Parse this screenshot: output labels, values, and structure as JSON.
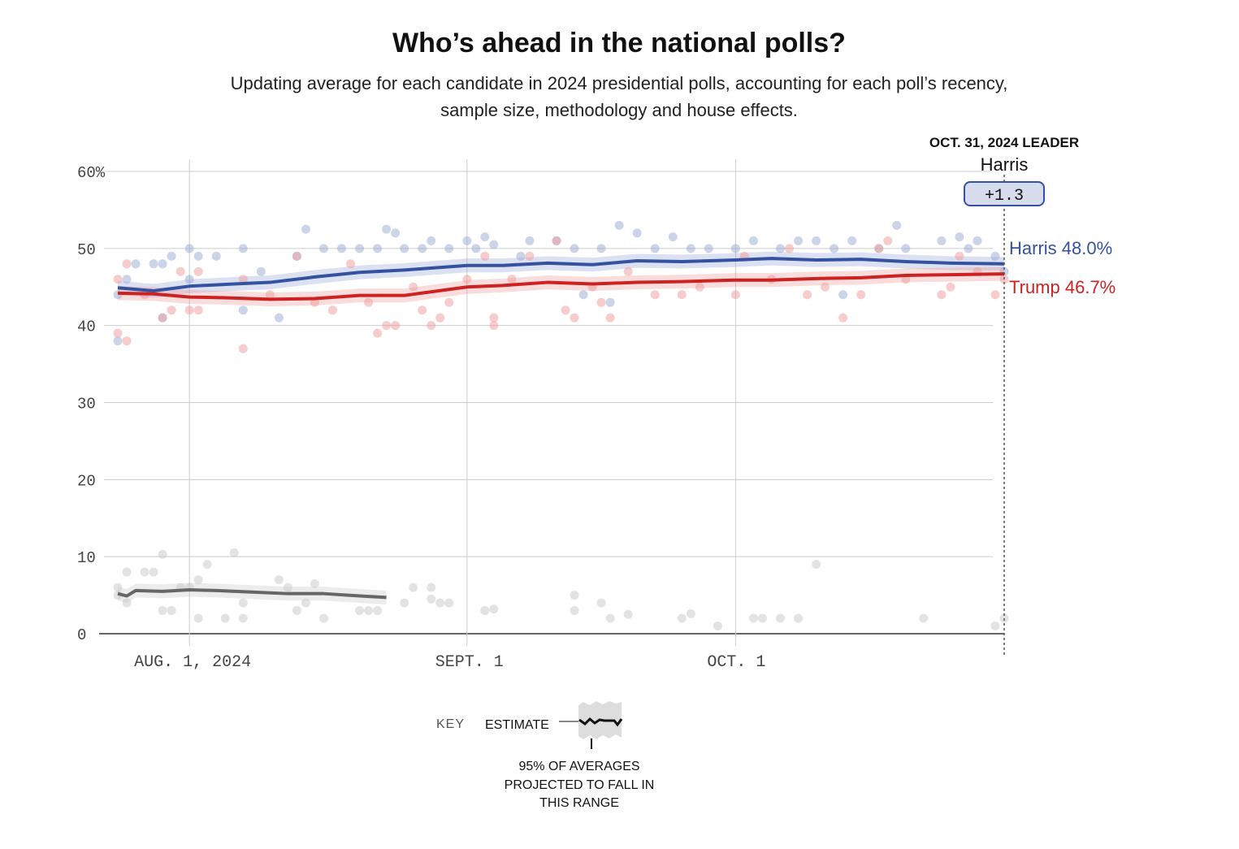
{
  "chart_data": {
    "type": "scatter",
    "title": "Who’s ahead in the national polls?",
    "subtitle": [
      "Updating average for each candidate in 2024 presidential polls, accounting for each poll’s recency,",
      "sample size, methodology and house effects."
    ],
    "y_ticks": [
      "60%",
      "50",
      "40",
      "30",
      "20",
      "10",
      "0"
    ],
    "y_tick_values": [
      60,
      50,
      40,
      30,
      20,
      10,
      0
    ],
    "ylim": [
      0,
      60
    ],
    "xlim": [
      "2024-07-24",
      "2024-10-31"
    ],
    "x_ticks": [
      {
        "date": "2024-08-01",
        "label": "AUG. 1, 2024"
      },
      {
        "date": "2024-09-01",
        "label": "SEPT. 1"
      },
      {
        "date": "2024-10-01",
        "label": "OCT. 1"
      }
    ],
    "grid": true,
    "leader": {
      "heading": "OCT. 31, 2024 LEADER",
      "name": "Harris",
      "margin": "+1.3",
      "date": "2024-10-31"
    },
    "series": [
      {
        "name": "Harris",
        "end_label": "Harris 48.0%",
        "color": "#3552a0",
        "dot_color": "#9aaad6",
        "trend": [
          [
            "2024-07-24",
            44.9
          ],
          [
            "2024-07-28",
            44.5
          ],
          [
            "2024-08-01",
            45.1
          ],
          [
            "2024-08-06",
            45.4
          ],
          [
            "2024-08-10",
            45.6
          ],
          [
            "2024-08-15",
            46.3
          ],
          [
            "2024-08-20",
            46.9
          ],
          [
            "2024-08-25",
            47.2
          ],
          [
            "2024-09-01",
            47.8
          ],
          [
            "2024-09-05",
            47.8
          ],
          [
            "2024-09-10",
            48.1
          ],
          [
            "2024-09-15",
            47.9
          ],
          [
            "2024-09-20",
            48.4
          ],
          [
            "2024-09-25",
            48.3
          ],
          [
            "2024-10-01",
            48.5
          ],
          [
            "2024-10-05",
            48.7
          ],
          [
            "2024-10-10",
            48.5
          ],
          [
            "2024-10-15",
            48.6
          ],
          [
            "2024-10-20",
            48.3
          ],
          [
            "2024-10-25",
            48.1
          ],
          [
            "2024-10-31",
            48.0
          ]
        ],
        "polls": [
          [
            "2024-07-24",
            38
          ],
          [
            "2024-07-24",
            44
          ],
          [
            "2024-07-25",
            46
          ],
          [
            "2024-07-26",
            48
          ],
          [
            "2024-07-28",
            48
          ],
          [
            "2024-07-29",
            48
          ],
          [
            "2024-07-29",
            41
          ],
          [
            "2024-07-30",
            49
          ],
          [
            "2024-08-01",
            50
          ],
          [
            "2024-08-01",
            46
          ],
          [
            "2024-08-02",
            49
          ],
          [
            "2024-08-04",
            49
          ],
          [
            "2024-08-07",
            50
          ],
          [
            "2024-08-07",
            42
          ],
          [
            "2024-08-09",
            47
          ],
          [
            "2024-08-11",
            41
          ],
          [
            "2024-08-13",
            49
          ],
          [
            "2024-08-14",
            52.5
          ],
          [
            "2024-08-16",
            50
          ],
          [
            "2024-08-18",
            50
          ],
          [
            "2024-08-20",
            50
          ],
          [
            "2024-08-22",
            50
          ],
          [
            "2024-08-23",
            52.5
          ],
          [
            "2024-08-24",
            52
          ],
          [
            "2024-08-25",
            50
          ],
          [
            "2024-08-27",
            50
          ],
          [
            "2024-08-28",
            51
          ],
          [
            "2024-08-30",
            50
          ],
          [
            "2024-09-01",
            51
          ],
          [
            "2024-09-02",
            50
          ],
          [
            "2024-09-03",
            51.5
          ],
          [
            "2024-09-04",
            50.5
          ],
          [
            "2024-09-07",
            49
          ],
          [
            "2024-09-08",
            51
          ],
          [
            "2024-09-11",
            51
          ],
          [
            "2024-09-13",
            50
          ],
          [
            "2024-09-14",
            44
          ],
          [
            "2024-09-16",
            50
          ],
          [
            "2024-09-17",
            43
          ],
          [
            "2024-09-18",
            53
          ],
          [
            "2024-09-20",
            52
          ],
          [
            "2024-09-22",
            50
          ],
          [
            "2024-09-24",
            51.5
          ],
          [
            "2024-09-26",
            50
          ],
          [
            "2024-09-28",
            50
          ],
          [
            "2024-10-01",
            50
          ],
          [
            "2024-10-03",
            51
          ],
          [
            "2024-10-06",
            50
          ],
          [
            "2024-10-08",
            51
          ],
          [
            "2024-10-10",
            51
          ],
          [
            "2024-10-12",
            50
          ],
          [
            "2024-10-13",
            44
          ],
          [
            "2024-10-14",
            51
          ],
          [
            "2024-10-17",
            50
          ],
          [
            "2024-10-19",
            53
          ],
          [
            "2024-10-20",
            50
          ],
          [
            "2024-10-24",
            51
          ],
          [
            "2024-10-26",
            51.5
          ],
          [
            "2024-10-27",
            50
          ],
          [
            "2024-10-28",
            51
          ],
          [
            "2024-10-30",
            49
          ],
          [
            "2024-10-31",
            47
          ]
        ]
      },
      {
        "name": "Trump",
        "end_label": "Trump 46.7%",
        "color": "#cc2222",
        "dot_color": "#ef9a9a",
        "trend": [
          [
            "2024-07-24",
            44.2
          ],
          [
            "2024-07-28",
            44.1
          ],
          [
            "2024-08-01",
            43.7
          ],
          [
            "2024-08-05",
            43.6
          ],
          [
            "2024-08-10",
            43.4
          ],
          [
            "2024-08-15",
            43.5
          ],
          [
            "2024-08-20",
            43.9
          ],
          [
            "2024-08-25",
            43.9
          ],
          [
            "2024-09-01",
            45.0
          ],
          [
            "2024-09-05",
            45.2
          ],
          [
            "2024-09-10",
            45.6
          ],
          [
            "2024-09-15",
            45.4
          ],
          [
            "2024-09-20",
            45.6
          ],
          [
            "2024-09-25",
            45.7
          ],
          [
            "2024-10-01",
            45.9
          ],
          [
            "2024-10-05",
            45.9
          ],
          [
            "2024-10-10",
            46.1
          ],
          [
            "2024-10-15",
            46.2
          ],
          [
            "2024-10-20",
            46.5
          ],
          [
            "2024-10-25",
            46.6
          ],
          [
            "2024-10-31",
            46.7
          ]
        ],
        "polls": [
          [
            "2024-07-24",
            39
          ],
          [
            "2024-07-24",
            46
          ],
          [
            "2024-07-25",
            38
          ],
          [
            "2024-07-25",
            48
          ],
          [
            "2024-07-27",
            44
          ],
          [
            "2024-07-29",
            41
          ],
          [
            "2024-07-30",
            42
          ],
          [
            "2024-07-31",
            47
          ],
          [
            "2024-08-01",
            42
          ],
          [
            "2024-08-02",
            42
          ],
          [
            "2024-08-02",
            47
          ],
          [
            "2024-08-07",
            37
          ],
          [
            "2024-08-07",
            46
          ],
          [
            "2024-08-10",
            44
          ],
          [
            "2024-08-13",
            49
          ],
          [
            "2024-08-15",
            43
          ],
          [
            "2024-08-17",
            42
          ],
          [
            "2024-08-19",
            48
          ],
          [
            "2024-08-21",
            43
          ],
          [
            "2024-08-22",
            39
          ],
          [
            "2024-08-23",
            40
          ],
          [
            "2024-08-24",
            40
          ],
          [
            "2024-08-26",
            45
          ],
          [
            "2024-08-27",
            42
          ],
          [
            "2024-08-28",
            40
          ],
          [
            "2024-08-29",
            41
          ],
          [
            "2024-08-30",
            43
          ],
          [
            "2024-09-01",
            46
          ],
          [
            "2024-09-03",
            49
          ],
          [
            "2024-09-04",
            40
          ],
          [
            "2024-09-04",
            41
          ],
          [
            "2024-09-06",
            46
          ],
          [
            "2024-09-08",
            49
          ],
          [
            "2024-09-11",
            51
          ],
          [
            "2024-09-12",
            42
          ],
          [
            "2024-09-13",
            41
          ],
          [
            "2024-09-15",
            45
          ],
          [
            "2024-09-16",
            43
          ],
          [
            "2024-09-17",
            41
          ],
          [
            "2024-09-19",
            47
          ],
          [
            "2024-09-22",
            44
          ],
          [
            "2024-09-25",
            44
          ],
          [
            "2024-09-27",
            45
          ],
          [
            "2024-10-01",
            44
          ],
          [
            "2024-10-02",
            49
          ],
          [
            "2024-10-05",
            46
          ],
          [
            "2024-10-07",
            50
          ],
          [
            "2024-10-09",
            44
          ],
          [
            "2024-10-11",
            45
          ],
          [
            "2024-10-13",
            41
          ],
          [
            "2024-10-15",
            44
          ],
          [
            "2024-10-17",
            50
          ],
          [
            "2024-10-18",
            51
          ],
          [
            "2024-10-20",
            46
          ],
          [
            "2024-10-24",
            44
          ],
          [
            "2024-10-25",
            45
          ],
          [
            "2024-10-26",
            49
          ],
          [
            "2024-10-28",
            47
          ],
          [
            "2024-10-30",
            44
          ],
          [
            "2024-10-31",
            46
          ]
        ]
      },
      {
        "color": "#666666",
        "dot_color": "#c8c8c8",
        "trend": [
          [
            "2024-07-24",
            5.2
          ],
          [
            "2024-07-25",
            4.9
          ],
          [
            "2024-07-26",
            5.6
          ],
          [
            "2024-07-29",
            5.5
          ],
          [
            "2024-08-01",
            5.7
          ],
          [
            "2024-08-04",
            5.6
          ],
          [
            "2024-08-08",
            5.4
          ],
          [
            "2024-08-12",
            5.2
          ],
          [
            "2024-08-16",
            5.2
          ],
          [
            "2024-08-20",
            4.9
          ],
          [
            "2024-08-23",
            4.7
          ]
        ],
        "polls": [
          [
            "2024-07-24",
            6
          ],
          [
            "2024-07-24",
            5
          ],
          [
            "2024-07-25",
            4
          ],
          [
            "2024-07-25",
            8
          ],
          [
            "2024-07-27",
            8
          ],
          [
            "2024-07-28",
            8
          ],
          [
            "2024-07-29",
            10.3
          ],
          [
            "2024-07-29",
            3
          ],
          [
            "2024-07-30",
            3
          ],
          [
            "2024-07-31",
            6
          ],
          [
            "2024-08-01",
            6
          ],
          [
            "2024-08-02",
            2
          ],
          [
            "2024-08-02",
            7
          ],
          [
            "2024-08-03",
            9
          ],
          [
            "2024-08-05",
            2
          ],
          [
            "2024-08-06",
            10.5
          ],
          [
            "2024-08-07",
            2
          ],
          [
            "2024-08-07",
            4
          ],
          [
            "2024-08-11",
            7
          ],
          [
            "2024-08-12",
            6
          ],
          [
            "2024-08-13",
            3
          ],
          [
            "2024-08-14",
            4
          ],
          [
            "2024-08-15",
            6.5
          ],
          [
            "2024-08-16",
            2
          ],
          [
            "2024-08-20",
            3
          ],
          [
            "2024-08-21",
            3
          ],
          [
            "2024-08-22",
            3
          ],
          [
            "2024-08-25",
            4
          ],
          [
            "2024-08-26",
            6
          ],
          [
            "2024-08-28",
            6
          ],
          [
            "2024-08-28",
            4.5
          ],
          [
            "2024-08-29",
            4
          ],
          [
            "2024-08-30",
            4
          ],
          [
            "2024-09-03",
            3
          ],
          [
            "2024-09-04",
            3.2
          ],
          [
            "2024-09-13",
            5
          ],
          [
            "2024-09-13",
            3
          ],
          [
            "2024-09-16",
            4
          ],
          [
            "2024-09-17",
            2
          ],
          [
            "2024-09-19",
            2.5
          ],
          [
            "2024-09-25",
            2
          ],
          [
            "2024-09-26",
            2.6
          ],
          [
            "2024-09-29",
            1
          ],
          [
            "2024-10-03",
            2
          ],
          [
            "2024-10-04",
            2
          ],
          [
            "2024-10-06",
            2
          ],
          [
            "2024-10-08",
            2
          ],
          [
            "2024-10-10",
            9
          ],
          [
            "2024-10-22",
            2
          ],
          [
            "2024-10-30",
            1
          ],
          [
            "2024-10-31",
            2
          ]
        ]
      }
    ],
    "key": {
      "label": "KEY",
      "estimate": "ESTIMATE",
      "range_lines": [
        "95% OF AVERAGES",
        "PROJECTED TO FALL IN",
        "THIS RANGE"
      ]
    }
  }
}
